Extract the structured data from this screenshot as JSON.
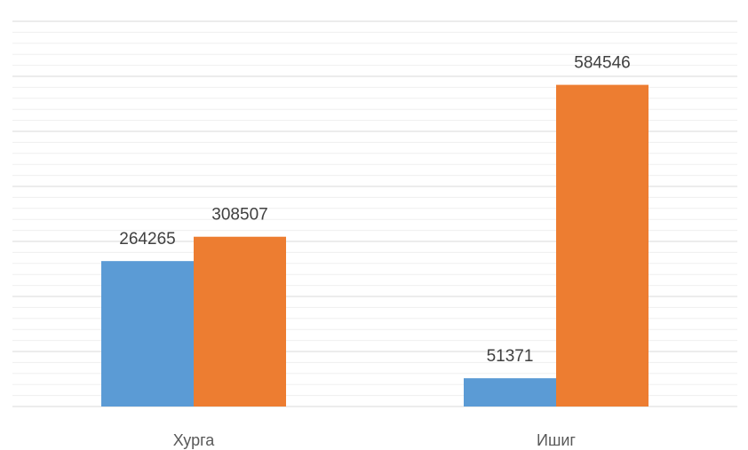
{
  "chart_data": {
    "type": "bar",
    "categories": [
      "Хурга",
      "Ишиг"
    ],
    "series": [
      {
        "color": "#5b9bd5",
        "values": [
          264265,
          51371
        ]
      },
      {
        "color": "#ed7d31",
        "values": [
          308507,
          584546
        ]
      }
    ],
    "ylim": [
      0,
      700000
    ],
    "yticks": [
      0,
      100000,
      200000,
      300000,
      400000,
      500000,
      600000,
      700000
    ],
    "y_minor_ticks": [
      20000,
      40000,
      60000,
      80000,
      120000,
      140000,
      160000,
      180000,
      220000,
      240000,
      260000,
      280000,
      320000,
      340000,
      360000,
      380000,
      420000,
      440000,
      460000,
      480000,
      520000,
      540000,
      560000,
      580000,
      620000,
      640000,
      660000,
      680000
    ],
    "grid": true
  }
}
